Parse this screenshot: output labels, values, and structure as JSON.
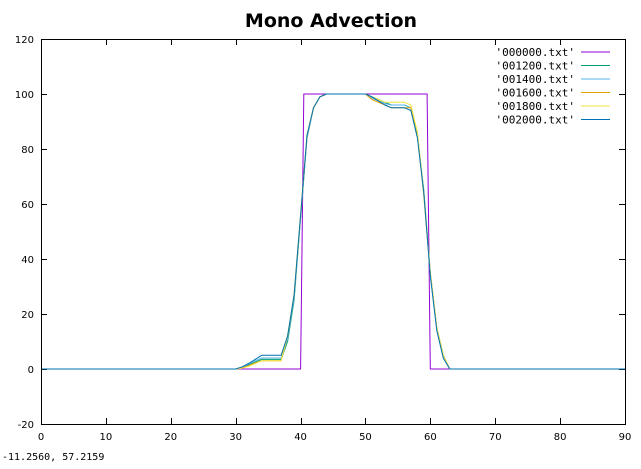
{
  "status": {
    "coordinates": "-11.2560,  57.2159"
  },
  "chart_data": {
    "type": "line",
    "title": "Mono Advection",
    "xlabel": "",
    "ylabel": "",
    "xlim": [
      0,
      90
    ],
    "ylim": [
      -20,
      120
    ],
    "xticks": [
      0,
      10,
      20,
      30,
      40,
      50,
      60,
      70,
      80,
      90
    ],
    "yticks": [
      -20,
      0,
      20,
      40,
      60,
      80,
      100,
      120
    ],
    "grid": false,
    "legend_position": "top-right",
    "series": [
      {
        "name": "'000000.txt'",
        "color": "#9400d3",
        "x": [
          0,
          40,
          40.5,
          59.5,
          60,
          90
        ],
        "y": [
          0,
          0,
          100,
          100,
          0,
          0
        ]
      },
      {
        "name": "'001200.txt'",
        "color": "#009e73",
        "x": [
          0,
          30,
          31,
          32,
          33,
          34,
          35,
          36,
          37,
          38,
          39,
          40,
          41,
          42,
          43,
          44,
          45,
          50,
          51,
          52,
          53,
          54,
          55,
          56,
          57,
          58,
          59,
          60,
          61,
          62,
          63,
          90
        ],
        "y": [
          0,
          0,
          0.5,
          1.5,
          2.5,
          3.5,
          3.5,
          3.5,
          3.5,
          10,
          25,
          55,
          84,
          95,
          99,
          100,
          100,
          100,
          99,
          98,
          97,
          96,
          96,
          96,
          95,
          85,
          65,
          35,
          15,
          5,
          0,
          0
        ]
      },
      {
        "name": "'001400.txt'",
        "color": "#56b4e9",
        "x": [
          0,
          30,
          31,
          32,
          33,
          34,
          35,
          36,
          37,
          38,
          39,
          40,
          41,
          42,
          43,
          44,
          45,
          50,
          51,
          52,
          53,
          54,
          55,
          56,
          57,
          58,
          59,
          60,
          61,
          62,
          63,
          90
        ],
        "y": [
          0,
          0,
          0.6,
          1.8,
          3,
          4,
          4,
          4,
          4,
          11,
          26,
          55,
          84,
          95,
          99,
          100,
          100,
          100,
          98.5,
          97.5,
          96.5,
          96,
          96,
          96,
          95,
          86,
          64,
          34,
          14,
          4,
          0,
          0
        ]
      },
      {
        "name": "'001600.txt'",
        "color": "#e69f00",
        "x": [
          0,
          30,
          31,
          32,
          33,
          34,
          35,
          36,
          37,
          38,
          39,
          40,
          41,
          42,
          43,
          44,
          45,
          50,
          51,
          52,
          53,
          54,
          55,
          56,
          57,
          58,
          59,
          60,
          61,
          62,
          63,
          90
        ],
        "y": [
          0,
          0,
          0.4,
          1.2,
          2.2,
          3,
          3,
          3,
          3,
          12,
          27,
          56,
          85,
          95,
          99,
          100,
          100,
          100,
          98,
          97,
          96,
          95,
          95,
          95,
          95,
          86,
          63,
          35,
          15,
          5,
          0,
          0
        ]
      },
      {
        "name": "'001800.txt'",
        "color": "#f0e442",
        "x": [
          0,
          30,
          31,
          32,
          33,
          34,
          35,
          36,
          37,
          38,
          39,
          40,
          41,
          42,
          43,
          44,
          45,
          50,
          51,
          52,
          53,
          54,
          55,
          56,
          57,
          58,
          59,
          60,
          61,
          62,
          63,
          90
        ],
        "y": [
          0,
          0,
          0.3,
          1,
          2,
          3,
          3,
          3,
          3,
          12,
          27,
          56,
          85,
          95,
          99,
          100,
          100,
          100,
          99,
          98,
          97,
          97,
          97,
          97,
          96,
          86,
          64,
          35,
          15,
          5,
          0,
          0
        ]
      },
      {
        "name": "'002000.txt'",
        "color": "#0072b2",
        "x": [
          0,
          30,
          31,
          32,
          33,
          34,
          35,
          36,
          37,
          38,
          39,
          40,
          41,
          42,
          43,
          44,
          45,
          50,
          51,
          52,
          53,
          54,
          55,
          56,
          57,
          58,
          59,
          60,
          61,
          62,
          63,
          90
        ],
        "y": [
          0,
          0,
          0.8,
          2,
          3.5,
          5,
          5,
          5,
          5,
          12,
          27,
          56,
          85,
          95,
          99,
          100,
          100,
          100,
          99,
          97.5,
          96,
          95,
          95,
          95,
          94,
          84,
          64,
          34,
          14,
          4,
          0,
          0
        ]
      }
    ]
  }
}
